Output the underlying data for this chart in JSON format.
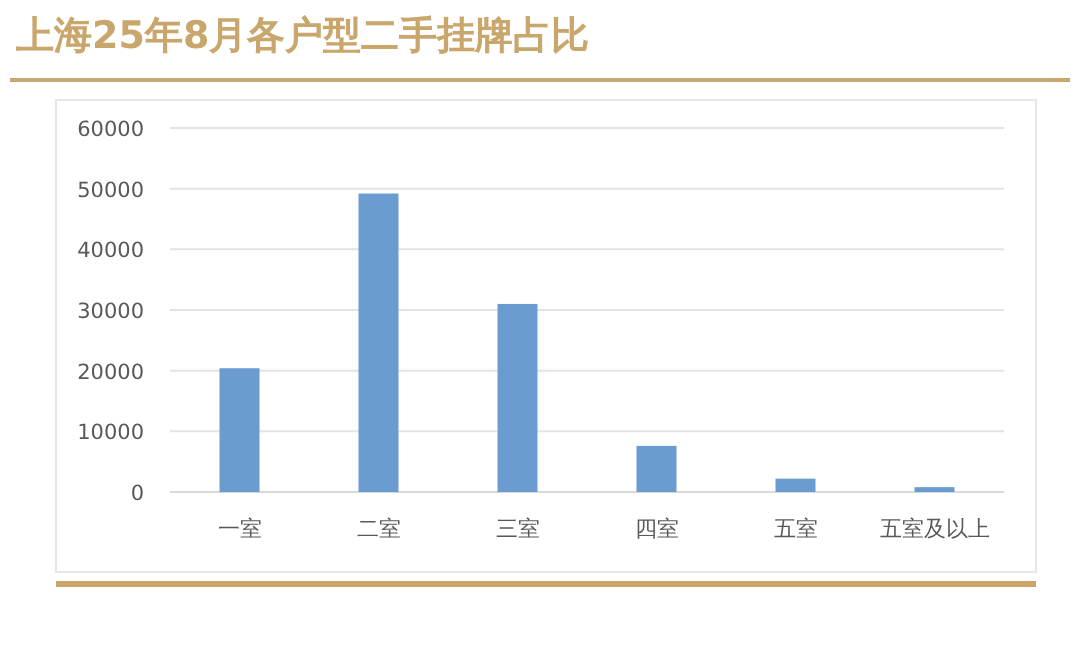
{
  "chart_data": {
    "type": "bar",
    "title": "上海25年8月各户型二手挂牌占比",
    "categories": [
      "一室",
      "二室",
      "三室",
      "四室",
      "五室",
      "五室及以上"
    ],
    "values": [
      20400,
      49200,
      31000,
      7600,
      2200,
      800
    ],
    "color": "#6a9bd1",
    "ylim": [
      0,
      60000
    ],
    "yticks": [
      0,
      10000,
      20000,
      30000,
      40000,
      50000,
      60000
    ],
    "grid": "y"
  }
}
